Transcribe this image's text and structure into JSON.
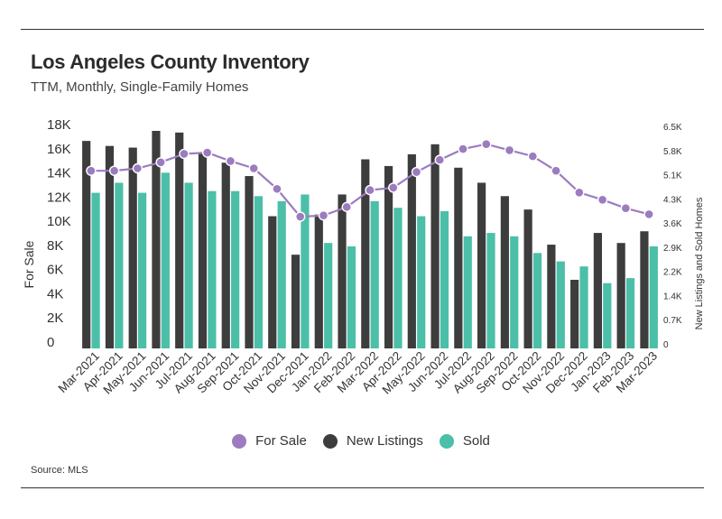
{
  "header": {
    "title": "Los Angeles County Inventory",
    "subtitle": "TTM, Monthly, Single-Family Homes"
  },
  "footer": {
    "source": "Source:  MLS"
  },
  "colors": {
    "for_sale": "#9c7cbf",
    "new_listings": "#3d3d3d",
    "sold": "#4bbfa8"
  },
  "chart_data": {
    "type": "bar",
    "categories": [
      "Mar-2021",
      "Apr-2021",
      "May-2021",
      "Jun-2021",
      "Jul-2021",
      "Aug-2021",
      "Sep-2021",
      "Oct-2021",
      "Nov-2021",
      "Dec-2021",
      "Jan-2022",
      "Feb-2022",
      "Mar-2022",
      "Apr-2022",
      "May-2022",
      "Jun-2022",
      "Jul-2022",
      "Aug-2022",
      "Sep-2022",
      "Oct-2022",
      "Nov-2022",
      "Dec-2022",
      "Jan-2023",
      "Feb-2023",
      "Mar-2023"
    ],
    "series": [
      {
        "name": "For Sale",
        "type": "line",
        "axis": "left",
        "values": [
          14700,
          14700,
          14900,
          15400,
          16100,
          16200,
          15500,
          14900,
          13200,
          10900,
          11000,
          11700,
          13100,
          13300,
          14600,
          15600,
          16500,
          16900,
          16400,
          15900,
          14700,
          12900,
          12300,
          11600,
          11100
        ]
      },
      {
        "name": "New Listings",
        "type": "bar",
        "axis": "right",
        "values": [
          6200,
          6050,
          6000,
          6500,
          6450,
          5850,
          5550,
          5150,
          3950,
          2800,
          4000,
          4600,
          5650,
          5450,
          5800,
          6100,
          5400,
          4950,
          4550,
          4150,
          3100,
          2050,
          3450,
          3150,
          3500
        ]
      },
      {
        "name": "Sold",
        "type": "bar",
        "axis": "right",
        "values": [
          4650,
          4950,
          4650,
          5250,
          4950,
          4700,
          4700,
          4550,
          4400,
          4600,
          3150,
          3050,
          4400,
          4200,
          3950,
          4100,
          3350,
          3450,
          3350,
          2850,
          2600,
          2450,
          1950,
          2100,
          3050
        ]
      }
    ],
    "y_left": {
      "label": "For Sale",
      "ticks": [
        "0",
        "2K",
        "4K",
        "6K",
        "8K",
        "10K",
        "12K",
        "14K",
        "16K",
        "18K"
      ],
      "range": [
        0,
        18000
      ]
    },
    "y_right": {
      "label": "New Listings and Sold Homes",
      "ticks": [
        "0",
        "0.7K",
        "1.4K",
        "2.2K",
        "2.9K",
        "3.6K",
        "4.3K",
        "5.1K",
        "5.8K",
        "6.5K"
      ],
      "range": [
        0,
        6500
      ]
    },
    "legend": [
      "For Sale",
      "New Listings",
      "Sold"
    ],
    "legend_position": "bottom"
  }
}
